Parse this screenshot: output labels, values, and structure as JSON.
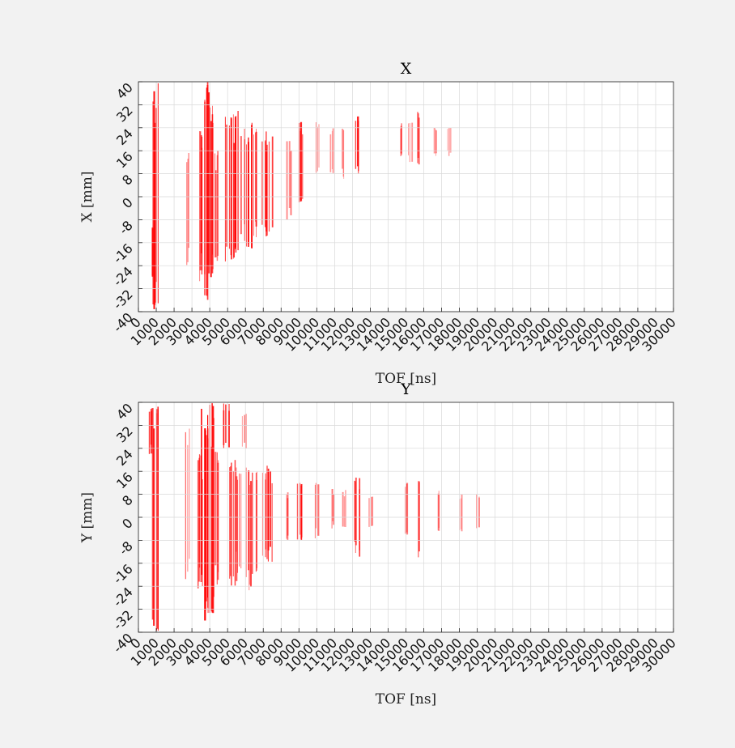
{
  "chart_data": [
    {
      "type": "heatmap",
      "title": "X",
      "xlabel": "TOF [ns]",
      "ylabel": "X [mm]",
      "xlim": [
        0,
        30000
      ],
      "ylim": [
        -40,
        40
      ],
      "xticks": [
        "0",
        "1000",
        "2000",
        "3000",
        "4000",
        "5000",
        "6000",
        "7000",
        "8000",
        "9000",
        "10000",
        "11000",
        "12000",
        "13000",
        "14000",
        "15000",
        "16000",
        "17000",
        "18000",
        "19000",
        "20000",
        "21000",
        "22000",
        "23000",
        "24000",
        "25000",
        "26000",
        "27000",
        "28000",
        "29000",
        "30000"
      ],
      "yticks": [
        "-40",
        "-32",
        "-24",
        "-16",
        "-8",
        "0",
        "8",
        "16",
        "24",
        "32",
        "40"
      ],
      "grid": true,
      "colormap": [
        "#ffffff",
        "#ff0000"
      ],
      "features": [
        {
          "tof": 700,
          "x_range": [
            -28,
            -10
          ],
          "intensity": 0.55
        },
        {
          "tof": 950,
          "x_range": [
            -40,
            40
          ],
          "intensity": 1.0
        },
        {
          "tof": 2700,
          "x_range": [
            -24,
            16
          ],
          "intensity": 0.4
        },
        {
          "tof": 3500,
          "x_range": [
            -30,
            24
          ],
          "intensity": 0.75
        },
        {
          "tof": 3800,
          "x_range": [
            -36,
            40
          ],
          "intensity": 1.0
        },
        {
          "tof": 4100,
          "x_range": [
            -30,
            36
          ],
          "intensity": 0.9
        },
        {
          "tof": 4300,
          "x_range": [
            -24,
            16
          ],
          "intensity": 0.6
        },
        {
          "tof": 5000,
          "x_range": [
            -24,
            28
          ],
          "intensity": 0.85
        },
        {
          "tof": 5400,
          "x_range": [
            -22,
            30
          ],
          "intensity": 1.0
        },
        {
          "tof": 5800,
          "x_range": [
            -20,
            24
          ],
          "intensity": 0.5
        },
        {
          "tof": 6200,
          "x_range": [
            -20,
            26
          ],
          "intensity": 0.85
        },
        {
          "tof": 6500,
          "x_range": [
            -16,
            24
          ],
          "intensity": 0.7
        },
        {
          "tof": 7000,
          "x_range": [
            -12,
            22
          ],
          "intensity": 0.5
        },
        {
          "tof": 7300,
          "x_range": [
            -14,
            24
          ],
          "intensity": 0.9
        },
        {
          "tof": 8400,
          "x_range": [
            -8,
            20
          ],
          "intensity": 0.35
        },
        {
          "tof": 9000,
          "x_range": [
            -2,
            26
          ],
          "intensity": 0.8
        },
        {
          "tof": 10000,
          "x_range": [
            8,
            26
          ],
          "intensity": 0.5
        },
        {
          "tof": 10800,
          "x_range": [
            8,
            24
          ],
          "intensity": 0.3
        },
        {
          "tof": 11500,
          "x_range": [
            6,
            24
          ],
          "intensity": 0.3
        },
        {
          "tof": 12200,
          "x_range": [
            8,
            28
          ],
          "intensity": 0.85
        },
        {
          "tof": 14700,
          "x_range": [
            14,
            26
          ],
          "intensity": 0.3
        },
        {
          "tof": 15200,
          "x_range": [
            12,
            26
          ],
          "intensity": 0.35
        },
        {
          "tof": 15700,
          "x_range": [
            10,
            30
          ],
          "intensity": 0.5
        },
        {
          "tof": 16600,
          "x_range": [
            14,
            24
          ],
          "intensity": 0.25
        },
        {
          "tof": 17400,
          "x_range": [
            14,
            24
          ],
          "intensity": 0.2
        }
      ]
    },
    {
      "type": "heatmap",
      "title": "Y",
      "xlabel": "TOF [ns]",
      "ylabel": "Y [mm]",
      "xlim": [
        0,
        30000
      ],
      "ylim": [
        -40,
        40
      ],
      "xticks": [
        "0",
        "1000",
        "2000",
        "3000",
        "4000",
        "5000",
        "6000",
        "7000",
        "8000",
        "9000",
        "10000",
        "11000",
        "12000",
        "13000",
        "14000",
        "15000",
        "16000",
        "17000",
        "18000",
        "19000",
        "20000",
        "21000",
        "22000",
        "23000",
        "24000",
        "25000",
        "26000",
        "27000",
        "28000",
        "29000",
        "30000"
      ],
      "yticks": [
        "-40",
        "-32",
        "-24",
        "-16",
        "-8",
        "0",
        "8",
        "16",
        "24",
        "32",
        "40"
      ],
      "grid": true,
      "colormap": [
        "#ffffff",
        "#ff0000"
      ],
      "features": [
        {
          "tof": 700,
          "x_range": [
            22,
            38
          ],
          "intensity": 0.7
        },
        {
          "tof": 950,
          "x_range": [
            -40,
            40
          ],
          "intensity": 1.0
        },
        {
          "tof": 2700,
          "x_range": [
            -22,
            34
          ],
          "intensity": 0.5
        },
        {
          "tof": 3400,
          "x_range": [
            -26,
            22
          ],
          "intensity": 0.75
        },
        {
          "tof": 3700,
          "x_range": [
            -36,
            40
          ],
          "intensity": 1.0
        },
        {
          "tof": 4000,
          "x_range": [
            -34,
            40
          ],
          "intensity": 0.95
        },
        {
          "tof": 4300,
          "x_range": [
            -26,
            24
          ],
          "intensity": 0.65
        },
        {
          "tof": 4900,
          "x_range": [
            24,
            40
          ],
          "intensity": 0.75
        },
        {
          "tof": 5300,
          "x_range": [
            -24,
            20
          ],
          "intensity": 1.0
        },
        {
          "tof": 5600,
          "x_range": [
            -20,
            18
          ],
          "intensity": 0.6
        },
        {
          "tof": 5900,
          "x_range": [
            24,
            36
          ],
          "intensity": 0.4
        },
        {
          "tof": 6200,
          "x_range": [
            -26,
            18
          ],
          "intensity": 0.85
        },
        {
          "tof": 6500,
          "x_range": [
            -20,
            16
          ],
          "intensity": 0.7
        },
        {
          "tof": 7000,
          "x_range": [
            -14,
            16
          ],
          "intensity": 0.5
        },
        {
          "tof": 7300,
          "x_range": [
            -16,
            18
          ],
          "intensity": 0.9
        },
        {
          "tof": 8400,
          "x_range": [
            -8,
            10
          ],
          "intensity": 0.35
        },
        {
          "tof": 9000,
          "x_range": [
            -8,
            12
          ],
          "intensity": 0.8
        },
        {
          "tof": 10000,
          "x_range": [
            -8,
            12
          ],
          "intensity": 0.45
        },
        {
          "tof": 10800,
          "x_range": [
            -4,
            10
          ],
          "intensity": 0.3
        },
        {
          "tof": 11500,
          "x_range": [
            -4,
            10
          ],
          "intensity": 0.3
        },
        {
          "tof": 12200,
          "x_range": [
            -14,
            14
          ],
          "intensity": 0.85
        },
        {
          "tof": 13000,
          "x_range": [
            -4,
            8
          ],
          "intensity": 0.3
        },
        {
          "tof": 15000,
          "x_range": [
            -6,
            12
          ],
          "intensity": 0.35
        },
        {
          "tof": 15700,
          "x_range": [
            -14,
            14
          ],
          "intensity": 0.5
        },
        {
          "tof": 16800,
          "x_range": [
            -6,
            10
          ],
          "intensity": 0.3
        },
        {
          "tof": 18000,
          "x_range": [
            -6,
            8
          ],
          "intensity": 0.25
        },
        {
          "tof": 19000,
          "x_range": [
            -4,
            8
          ],
          "intensity": 0.2
        }
      ]
    }
  ]
}
